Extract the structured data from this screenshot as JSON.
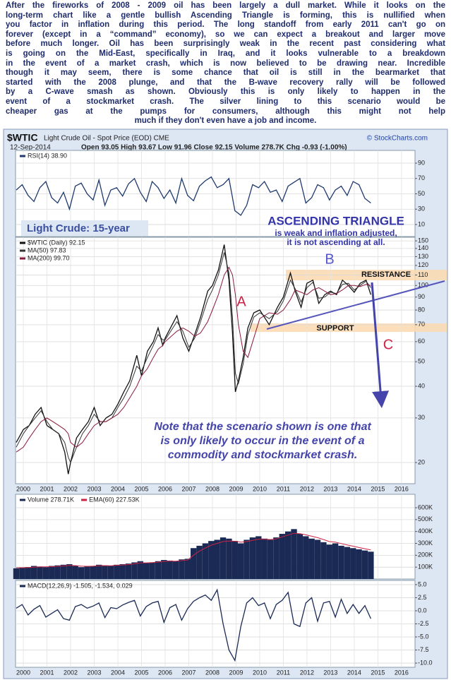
{
  "article": {
    "lines": [
      "After the fireworks of 2008 - 2009 oil has been largely a dull market. While it looks on the",
      "long-term chart like a gentle bullish Ascending Triangle is forming, this is nullified when",
      "you factor in inflation during this period. The long standoff from early 2011 can't go on",
      "forever (except in a “command” economy), so we can expect a breakout and larger move",
      "before much longer. Oil has been surprisingly weak in the recent past considering what",
      "is going on the Mid-East, specifically in Iraq, and it looks vulnerable to a breakdown",
      "in the event of a market crash, which is now believed to be drawing near. Incredible",
      "though it may seem, there is some chance that oil is still in the bearmarket that",
      "started with the 2008 plunge, and that the B-wave recovery rally will be followed",
      "by a C-wave smash as shown. Obviously this is only likely to happen in the",
      "event of a stockmarket crash. The silver lining to this scenario would be",
      "cheaper gas at the pumps for consumers, although this might not help",
      "much if they don't even have a job and income."
    ]
  },
  "header": {
    "symbol": "$WTIC",
    "description": "Light Crude Oil - Spot Price (EOD) CME",
    "source": "© StockCharts.com",
    "date": "12-Sep-2014",
    "quote": "Open 93.05  High 93.67  Low 91.96  Close 92.15  Volume 278.7K  Chg -0.93 (-1.00%)"
  },
  "annotations": {
    "label": "Light Crude: 15-year",
    "pattern_title": "ASCENDING TRIANGLE",
    "pattern_note": [
      "is weak and inflation adjusted,",
      "it is not ascending at all."
    ],
    "wave_a": "A",
    "wave_b": "B",
    "wave_c": "C",
    "resistance": "RESISTANCE",
    "support": "SUPPORT",
    "note": [
      "Note that the scenario shown is one that",
      "is only likely to occur in the event of a",
      "commodity and stockmarket crash."
    ]
  },
  "chart_data": [
    {
      "type": "line",
      "xlim": [
        1999.67,
        2016.57
      ],
      "xticks": [
        2000,
        2001,
        2002,
        2003,
        2004,
        2005,
        2006,
        2007,
        2008,
        2009,
        2010,
        2011,
        2012,
        2013,
        2014,
        2015,
        2016
      ],
      "ylim": [
        -5.7,
        106.6
      ],
      "yticks": [
        90,
        70,
        50,
        30,
        10
      ],
      "x": [
        1999.7,
        1999.95,
        2000.2,
        2000.45,
        2000.7,
        2000.95,
        2001.2,
        2001.45,
        2001.7,
        2001.95,
        2002.2,
        2002.45,
        2002.7,
        2002.95,
        2003.2,
        2003.45,
        2003.7,
        2003.95,
        2004.2,
        2004.45,
        2004.7,
        2004.95,
        2005.2,
        2005.45,
        2005.7,
        2005.95,
        2006.2,
        2006.45,
        2006.7,
        2006.95,
        2007.2,
        2007.45,
        2007.7,
        2007.95,
        2008.2,
        2008.45,
        2008.7,
        2008.95,
        2009.2,
        2009.45,
        2009.7,
        2009.95,
        2010.2,
        2010.45,
        2010.7,
        2010.95,
        2011.2,
        2011.45,
        2011.7,
        2011.95,
        2012.2,
        2012.45,
        2012.7,
        2012.95,
        2013.2,
        2013.45,
        2013.7,
        2013.95,
        2014.2,
        2014.45,
        2014.7
      ],
      "series": [
        {
          "name": "RSI(14) 38.90",
          "color": "#1f3a6e",
          "values": [
            55,
            62,
            48,
            40,
            58,
            66,
            45,
            38,
            52,
            30,
            60,
            64,
            50,
            42,
            68,
            35,
            55,
            58,
            47,
            63,
            70,
            52,
            40,
            66,
            58,
            44,
            55,
            38,
            70,
            48,
            41,
            60,
            67,
            72,
            58,
            62,
            70,
            28,
            22,
            35,
            62,
            58,
            66,
            52,
            55,
            40,
            60,
            65,
            70,
            38,
            45,
            62,
            58,
            42,
            55,
            60,
            48,
            66,
            62,
            44,
            38
          ]
        }
      ]
    },
    {
      "type": "line",
      "log": true,
      "xlim": [
        1999.67,
        2016.57
      ],
      "xticks": [
        2000,
        2001,
        2002,
        2003,
        2004,
        2005,
        2006,
        2007,
        2008,
        2009,
        2010,
        2011,
        2012,
        2013,
        2014,
        2015,
        2016
      ],
      "ylim": [
        16.5,
        155
      ],
      "yticks": [
        150,
        140,
        130,
        120,
        110,
        100,
        90,
        80,
        70,
        60,
        50,
        40,
        30,
        20
      ],
      "x": [
        1999.7,
        2000,
        2000.25,
        2000.5,
        2000.75,
        2001,
        2001.25,
        2001.5,
        2001.75,
        2001.9,
        2002,
        2002.25,
        2002.5,
        2002.75,
        2003,
        2003.25,
        2003.5,
        2003.75,
        2004,
        2004.25,
        2004.5,
        2004.8,
        2005,
        2005.25,
        2005.5,
        2005.7,
        2005.9,
        2006,
        2006.5,
        2006.75,
        2007,
        2007.25,
        2007.5,
        2007.8,
        2008,
        2008.25,
        2008.5,
        2008.7,
        2008.85,
        2008.97,
        2009.1,
        2009.3,
        2009.5,
        2009.75,
        2010,
        2010.4,
        2010.75,
        2011,
        2011.3,
        2011.5,
        2011.75,
        2012,
        2012.25,
        2012.5,
        2012.75,
        2013,
        2013.25,
        2013.5,
        2013.75,
        2014,
        2014.25,
        2014.5,
        2014.7
      ],
      "series": [
        {
          "name": "$WTIC (Daily) 92.15",
          "color": "#111111",
          "values": [
            24,
            27,
            28,
            31,
            33,
            28,
            27,
            26,
            22,
            18,
            20,
            25,
            27,
            29,
            33,
            28,
            30,
            31,
            34,
            38,
            42,
            53,
            44,
            55,
            60,
            68,
            58,
            62,
            76,
            62,
            55,
            64,
            75,
            95,
            100,
            115,
            145,
            105,
            65,
            38,
            42,
            52,
            68,
            78,
            80,
            70,
            82,
            90,
            112,
            95,
            82,
            102,
            105,
            85,
            92,
            95,
            92,
            105,
            100,
            94,
            102,
            105,
            92
          ]
        },
        {
          "name": "MA(50) 97.83",
          "color": "#333333",
          "values": [
            23,
            26,
            28,
            30,
            32,
            29,
            27,
            26,
            24,
            21,
            20,
            23,
            26,
            28,
            31,
            29,
            29,
            30,
            33,
            36,
            40,
            48,
            46,
            52,
            58,
            64,
            61,
            61,
            72,
            66,
            57,
            62,
            72,
            88,
            96,
            110,
            135,
            112,
            75,
            45,
            41,
            49,
            64,
            75,
            78,
            74,
            79,
            87,
            105,
            97,
            86,
            98,
            103,
            89,
            90,
            94,
            93,
            101,
            102,
            96,
            100,
            104,
            98
          ]
        },
        {
          "name": "MA(200) 99.70",
          "color": "#8b1a3a",
          "values": [
            22,
            23,
            25,
            27,
            29,
            30,
            29,
            28,
            27,
            26,
            24,
            23,
            24,
            26,
            28,
            29,
            29,
            30,
            31,
            33,
            36,
            40,
            44,
            47,
            52,
            56,
            58,
            60,
            66,
            68,
            66,
            63,
            65,
            72,
            80,
            92,
            110,
            118,
            110,
            92,
            70,
            55,
            52,
            62,
            74,
            78,
            77,
            80,
            88,
            96,
            94,
            92,
            96,
            98,
            95,
            92,
            93,
            96,
            100,
            100,
            99,
            101,
            100
          ]
        }
      ]
    },
    {
      "type": "bar",
      "xlim": [
        1999.67,
        2016.57
      ],
      "xticks": [
        2000,
        2001,
        2002,
        2003,
        2004,
        2005,
        2006,
        2007,
        2008,
        2009,
        2010,
        2011,
        2012,
        2013,
        2014,
        2015,
        2016
      ],
      "ylim": [
        0,
        713000
      ],
      "yticks": [
        {
          "value": 600000,
          "label": "600K"
        },
        {
          "value": 500000,
          "label": "500K"
        },
        {
          "value": 400000,
          "label": "400K"
        },
        {
          "value": 300000,
          "label": "300K"
        },
        {
          "value": 200000,
          "label": "200K"
        },
        {
          "value": 100000,
          "label": "100K"
        }
      ],
      "x": [
        1999.7,
        1999.95,
        2000.2,
        2000.45,
        2000.7,
        2000.95,
        2001.2,
        2001.45,
        2001.7,
        2001.95,
        2002.2,
        2002.45,
        2002.7,
        2002.95,
        2003.2,
        2003.45,
        2003.7,
        2003.95,
        2004.2,
        2004.45,
        2004.7,
        2004.95,
        2005.2,
        2005.45,
        2005.7,
        2005.95,
        2006.2,
        2006.45,
        2006.7,
        2006.95,
        2007.2,
        2007.45,
        2007.7,
        2007.95,
        2008.2,
        2008.45,
        2008.7,
        2008.95,
        2009.2,
        2009.45,
        2009.7,
        2009.95,
        2010.2,
        2010.45,
        2010.7,
        2010.95,
        2011.2,
        2011.45,
        2011.7,
        2011.95,
        2012.2,
        2012.45,
        2012.7,
        2012.95,
        2013.2,
        2013.45,
        2013.7,
        2013.95,
        2014.2,
        2014.45,
        2014.7
      ],
      "series": [
        {
          "name": "Volume 278.71K",
          "color": "#1a2a55",
          "values": [
            90000,
            95000,
            100000,
            110000,
            105000,
            100000,
            110000,
            115000,
            120000,
            125000,
            110000,
            100000,
            105000,
            110000,
            120000,
            115000,
            110000,
            120000,
            125000,
            130000,
            140000,
            150000,
            135000,
            140000,
            150000,
            160000,
            155000,
            150000,
            165000,
            170000,
            260000,
            280000,
            300000,
            320000,
            330000,
            350000,
            340000,
            320000,
            300000,
            330000,
            350000,
            360000,
            340000,
            330000,
            350000,
            380000,
            400000,
            420000,
            380000,
            360000,
            340000,
            330000,
            310000,
            290000,
            300000,
            280000,
            270000,
            260000,
            250000,
            240000,
            230000
          ]
        },
        {
          "name": "EMA(60) 227.53K",
          "type": "line",
          "color": "#cc2244",
          "values": [
            95000,
            95000,
            97000,
            100000,
            102000,
            102000,
            104000,
            107000,
            110000,
            114000,
            113000,
            109000,
            107000,
            108000,
            112000,
            113000,
            112000,
            115000,
            118000,
            122000,
            128000,
            136000,
            136000,
            138000,
            142000,
            148000,
            150000,
            150000,
            155000,
            160000,
            200000,
            235000,
            260000,
            285000,
            300000,
            315000,
            320000,
            318000,
            310000,
            315000,
            325000,
            335000,
            335000,
            332000,
            338000,
            355000,
            370000,
            385000,
            382000,
            372000,
            360000,
            348000,
            332000,
            315000,
            310000,
            298000,
            287000,
            276000,
            265000,
            255000,
            245000
          ]
        }
      ]
    },
    {
      "type": "line",
      "xlim": [
        1999.67,
        2016.57
      ],
      "xticks": [
        2000,
        2001,
        2002,
        2003,
        2004,
        2005,
        2006,
        2007,
        2008,
        2009,
        2010,
        2011,
        2012,
        2013,
        2014,
        2015,
        2016
      ],
      "ylim": [
        -10.8,
        5.8
      ],
      "yticks": [
        {
          "value": 5,
          "label": "5.0"
        },
        2.5,
        {
          "value": 0,
          "label": "0.0"
        },
        -2.5,
        {
          "value": -5,
          "label": "-5.0"
        },
        -7.5,
        {
          "value": -10,
          "label": "-10.0"
        }
      ],
      "x": [
        1999.7,
        1999.95,
        2000.2,
        2000.45,
        2000.7,
        2000.95,
        2001.2,
        2001.45,
        2001.7,
        2001.95,
        2002.2,
        2002.45,
        2002.7,
        2002.95,
        2003.2,
        2003.45,
        2003.7,
        2003.95,
        2004.2,
        2004.45,
        2004.7,
        2004.95,
        2005.2,
        2005.45,
        2005.7,
        2005.95,
        2006.2,
        2006.45,
        2006.7,
        2006.95,
        2007.2,
        2007.45,
        2007.7,
        2007.95,
        2008.2,
        2008.45,
        2008.7,
        2008.95,
        2009.2,
        2009.45,
        2009.7,
        2009.95,
        2010.2,
        2010.45,
        2010.7,
        2010.95,
        2011.2,
        2011.45,
        2011.7,
        2011.95,
        2012.2,
        2012.45,
        2012.7,
        2012.95,
        2013.2,
        2013.45,
        2013.7,
        2013.95,
        2014.2,
        2014.45,
        2014.7
      ],
      "series": [
        {
          "name": "MACD(12,26,9) -1.505, -1.534, 0.029",
          "color": "#1a2a55",
          "values": [
            0.5,
            1.2,
            -0.8,
            0.3,
            1.0,
            -1.2,
            -0.5,
            0.2,
            -1.5,
            -1.8,
            0.8,
            1.2,
            0.5,
            0.9,
            1.5,
            -1.3,
            0.6,
            0.4,
            1.1,
            1.6,
            2.0,
            -1.0,
            0.8,
            1.5,
            1.8,
            -2.2,
            0.6,
            1.2,
            -1.8,
            0.4,
            1.8,
            2.5,
            3.0,
            2.0,
            4.0,
            -2.5,
            -7.5,
            -9.5,
            -3.0,
            1.5,
            2.5,
            1.0,
            1.5,
            -1.5,
            1.2,
            2.0,
            3.5,
            -2.5,
            -3.0,
            1.5,
            2.5,
            -2.0,
            1.5,
            1.8,
            -1.2,
            2.2,
            -0.5,
            1.2,
            -0.5,
            1.0,
            -1.5
          ]
        }
      ]
    }
  ]
}
